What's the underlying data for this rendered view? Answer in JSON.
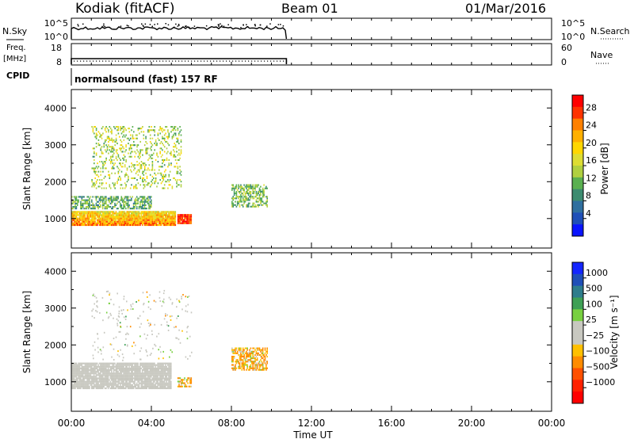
{
  "header": {
    "station": "Kodiak (fitACF)",
    "beam": "Beam 01",
    "date": "01/Mar/2016"
  },
  "labels": {
    "nsky": "N.Sky",
    "freq_line1": "Freq.",
    "freq_line2": "[MHz]",
    "cpid": "CPID",
    "nsearch": "N.Search",
    "nave": "Nave",
    "program": "normalsound (fast) 157 RF",
    "time_axis": "Time UT"
  },
  "noise_panel": {
    "left_ticks": [
      "10^5",
      "10^0"
    ],
    "right_ticks": [
      "10^5",
      "10^0"
    ]
  },
  "freq_panel": {
    "left_ticks": [
      "18",
      "8"
    ],
    "right_ticks": [
      "60",
      "0"
    ]
  },
  "range_axis": {
    "label": "Slant Range [km]",
    "ticks": [
      "4000",
      "3000",
      "2000",
      "1000"
    ]
  },
  "time_ticks": [
    "00:00",
    "04:00",
    "08:00",
    "12:00",
    "16:00",
    "20:00",
    "00:00"
  ],
  "power_colorbar": {
    "label": "Power [dB]",
    "ticks": [
      "28",
      "24",
      "20",
      "16",
      "12",
      "8",
      "4"
    ],
    "colors": [
      "#ff0000",
      "#ff3300",
      "#ff8000",
      "#ffb000",
      "#ffd700",
      "#dddd33",
      "#b0d040",
      "#5ab050",
      "#3c8c70",
      "#2f6f9f",
      "#1f4fb8",
      "#0a14ff"
    ]
  },
  "velocity_colorbar": {
    "label": "Velocity [m s⁻¹]",
    "ticks": [
      "1000",
      "500",
      "100",
      "25",
      "−25",
      "−100",
      "−500",
      "−1000"
    ],
    "colors": [
      "#1426ff",
      "#1f4fb8",
      "#2e7d8c",
      "#3ea055",
      "#78d040",
      "#c8c8c0",
      "#c8c8c0",
      "#ffc000",
      "#ff8c00",
      "#ff5000",
      "#ff2000",
      "#ff0000"
    ]
  },
  "chart_data": {
    "type": "heatmap",
    "x_unit": "hours UT",
    "x_range": [
      0,
      24
    ],
    "y_unit": "km",
    "y_range": [
      200,
      4500
    ],
    "data_end_hour": 10.75,
    "power_regions": [
      {
        "desc": "strong band",
        "t": [
          0.0,
          5.2
        ],
        "r": [
          800,
          1200
        ],
        "level": 24
      },
      {
        "desc": "strong patch",
        "t": [
          5.3,
          6.0
        ],
        "r": [
          850,
          1100
        ],
        "level": 28
      },
      {
        "desc": "mid band",
        "t": [
          0.0,
          4.0
        ],
        "r": [
          1250,
          1600
        ],
        "level": 10
      },
      {
        "desc": "upper streaks",
        "t": [
          1.0,
          5.5
        ],
        "r": [
          1800,
          3500
        ],
        "level": 14
      },
      {
        "desc": "isolated echo",
        "t": [
          8.0,
          9.8
        ],
        "r": [
          1300,
          1900
        ],
        "level": 12
      }
    ],
    "velocity_regions": [
      {
        "desc": "near-zero band",
        "t": [
          0.0,
          5.0
        ],
        "r": [
          800,
          1500
        ],
        "velocity": 0
      },
      {
        "desc": "negative patch",
        "t": [
          5.3,
          6.0
        ],
        "r": [
          850,
          1100
        ],
        "velocity": -100
      },
      {
        "desc": "isolated echo",
        "t": [
          8.0,
          9.8
        ],
        "r": [
          1300,
          1900
        ],
        "velocity": -100
      }
    ]
  }
}
